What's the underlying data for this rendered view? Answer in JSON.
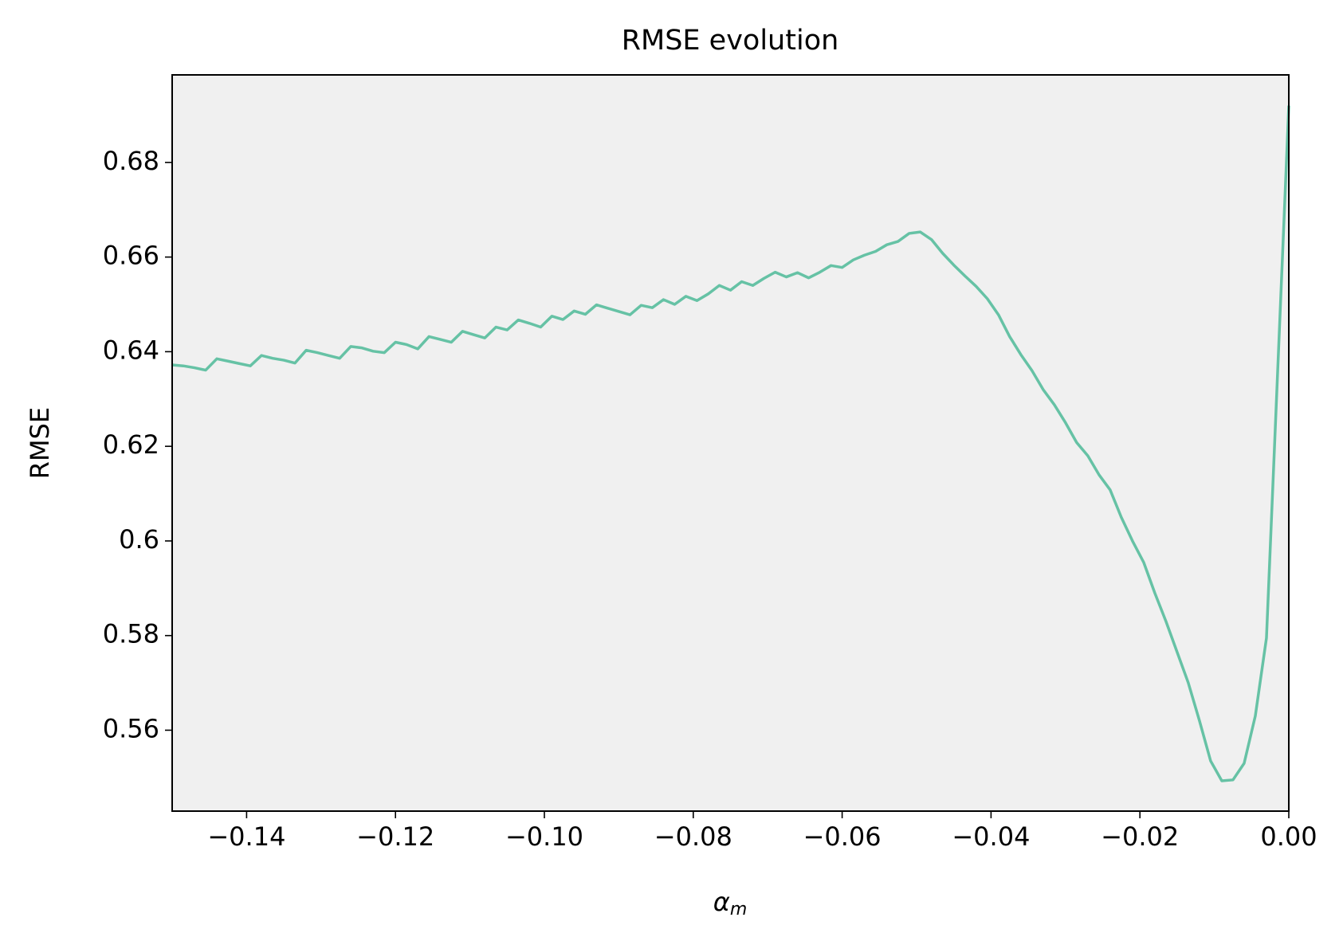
{
  "chart_data": {
    "type": "line",
    "title": "RMSE evolution",
    "ylabel": "RMSE",
    "xlabel": "α",
    "xlabel_subscript": "m",
    "background": "#f0f0f0",
    "x": [
      -0.15,
      -0.1485,
      -0.147,
      -0.1455,
      -0.144,
      -0.1425,
      -0.141,
      -0.1395,
      -0.138,
      -0.1365,
      -0.135,
      -0.1335,
      -0.132,
      -0.1305,
      -0.129,
      -0.1275,
      -0.126,
      -0.1245,
      -0.123,
      -0.1215,
      -0.12,
      -0.1185,
      -0.117,
      -0.1155,
      -0.114,
      -0.1125,
      -0.111,
      -0.1095,
      -0.108,
      -0.1065,
      -0.105,
      -0.1035,
      -0.102,
      -0.1005,
      -0.099,
      -0.0975,
      -0.096,
      -0.0945,
      -0.093,
      -0.0915,
      -0.09,
      -0.0885,
      -0.087,
      -0.0855,
      -0.084,
      -0.0825,
      -0.081,
      -0.0795,
      -0.078,
      -0.0765,
      -0.075,
      -0.0735,
      -0.072,
      -0.0705,
      -0.069,
      -0.0675,
      -0.066,
      -0.0645,
      -0.063,
      -0.0615,
      -0.06,
      -0.0585,
      -0.057,
      -0.0555,
      -0.054,
      -0.0525,
      -0.051,
      -0.0495,
      -0.048,
      -0.0465,
      -0.045,
      -0.0435,
      -0.042,
      -0.0405,
      -0.039,
      -0.0375,
      -0.036,
      -0.0345,
      -0.033,
      -0.0315,
      -0.03,
      -0.0285,
      -0.027,
      -0.0255,
      -0.024,
      -0.0225,
      -0.021,
      -0.0195,
      -0.018,
      -0.0165,
      -0.015,
      -0.0135,
      -0.012,
      -0.0105,
      -0.009,
      -0.0075,
      -0.006,
      -0.0045,
      -0.003,
      -0.0015,
      0
    ],
    "series": [
      {
        "color": "#66c2a5",
        "values": [
          0.6372,
          0.637,
          0.6366,
          0.6361,
          0.6385,
          0.638,
          0.6375,
          0.637,
          0.6392,
          0.6386,
          0.6382,
          0.6376,
          0.6403,
          0.6398,
          0.6392,
          0.6386,
          0.6411,
          0.6408,
          0.6401,
          0.6398,
          0.642,
          0.6415,
          0.6406,
          0.6432,
          0.6426,
          0.642,
          0.6443,
          0.6436,
          0.6429,
          0.6452,
          0.6446,
          0.6467,
          0.646,
          0.6452,
          0.6475,
          0.6468,
          0.6486,
          0.6479,
          0.6499,
          0.6492,
          0.6485,
          0.6478,
          0.6498,
          0.6493,
          0.651,
          0.65,
          0.6517,
          0.6508,
          0.6522,
          0.654,
          0.653,
          0.6548,
          0.654,
          0.6555,
          0.6568,
          0.6558,
          0.6567,
          0.6556,
          0.6568,
          0.6582,
          0.6578,
          0.6594,
          0.6604,
          0.6612,
          0.6626,
          0.6633,
          0.665,
          0.6653,
          0.6637,
          0.6608,
          0.6583,
          0.656,
          0.6538,
          0.6512,
          0.6478,
          0.6432,
          0.6394,
          0.636,
          0.632,
          0.6288,
          0.625,
          0.6208,
          0.618,
          0.614,
          0.6108,
          0.605,
          0.6,
          0.5955,
          0.589,
          0.583,
          0.5765,
          0.57,
          0.562,
          0.5535,
          0.5493,
          0.5495,
          0.553,
          0.563,
          0.5795,
          0.6357,
          0.692
        ]
      }
    ],
    "xlim": [
      -0.15,
      0
    ],
    "ylim": [
      0.5429,
      0.6985
    ],
    "xticks": [
      {
        "value": -0.14,
        "label": "−0.14"
      },
      {
        "value": -0.12,
        "label": "−0.12"
      },
      {
        "value": -0.1,
        "label": "−0.10"
      },
      {
        "value": -0.08,
        "label": "−0.08"
      },
      {
        "value": -0.06,
        "label": "−0.06"
      },
      {
        "value": -0.04,
        "label": "−0.04"
      },
      {
        "value": -0.02,
        "label": "−0.02"
      },
      {
        "value": 0,
        "label": "0.00"
      }
    ],
    "yticks": [
      0.56,
      0.58,
      0.6,
      0.62,
      0.64,
      0.66,
      0.68
    ]
  }
}
